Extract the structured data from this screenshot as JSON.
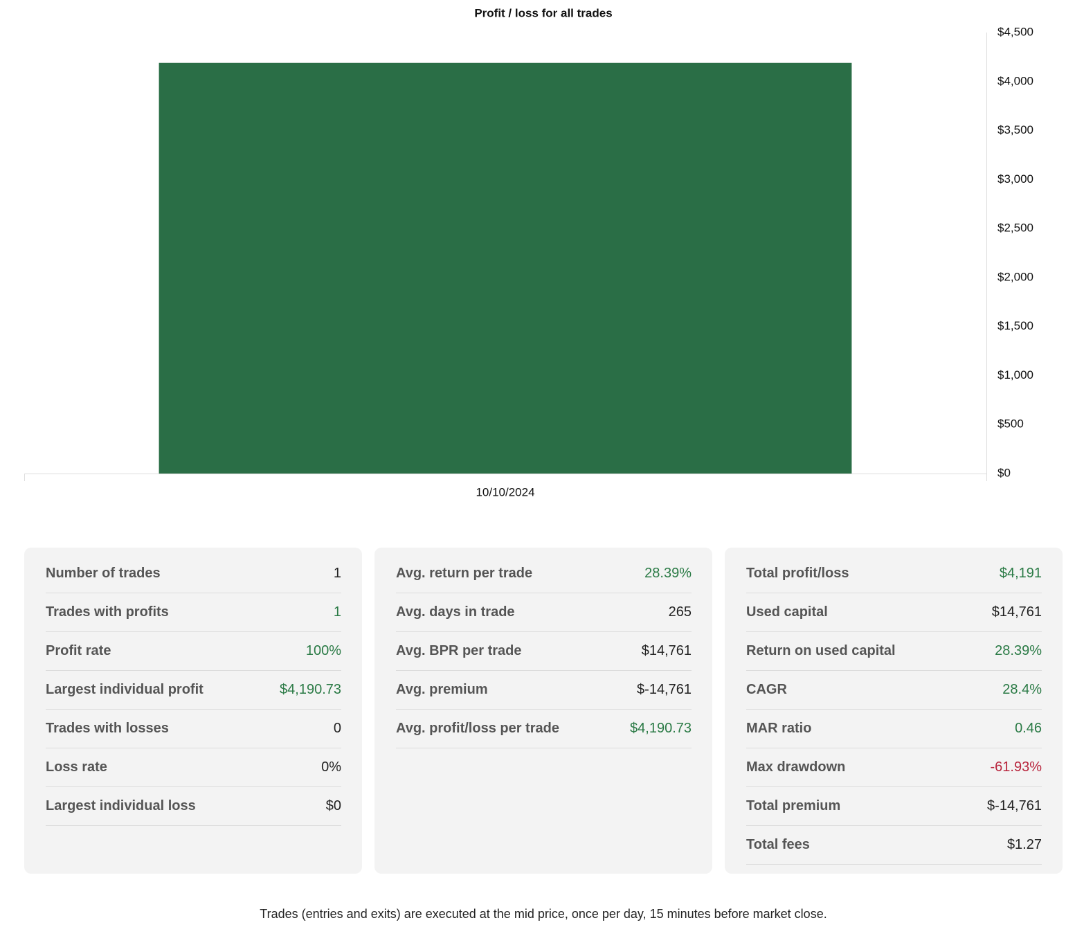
{
  "chart_data": {
    "type": "bar",
    "title": "Profit / loss for all trades",
    "categories": [
      "10/10/2024"
    ],
    "values": [
      4190.73
    ],
    "color": "#2a6e46",
    "ylim": [
      0,
      4500
    ],
    "yticks": [
      {
        "value": 0,
        "label": "$0"
      },
      {
        "value": 500,
        "label": "$500"
      },
      {
        "value": 1000,
        "label": "$1,000"
      },
      {
        "value": 1500,
        "label": "$1,500"
      },
      {
        "value": 2000,
        "label": "$2,000"
      },
      {
        "value": 2500,
        "label": "$2,500"
      },
      {
        "value": 3000,
        "label": "$3,000"
      },
      {
        "value": 3500,
        "label": "$3,500"
      },
      {
        "value": 4000,
        "label": "$4,000"
      },
      {
        "value": 4500,
        "label": "$4,500"
      }
    ],
    "grid": false
  },
  "panels": [
    {
      "rows": [
        {
          "label": "Number of trades",
          "value": "1",
          "color": "#222222"
        },
        {
          "label": "Trades with profits",
          "value": "1",
          "color": "#2a7a45"
        },
        {
          "label": "Profit rate",
          "value": "100%",
          "color": "#2a7a45"
        },
        {
          "label": "Largest individual profit",
          "value": "$4,190.73",
          "color": "#2a7a45"
        },
        {
          "label": "Trades with losses",
          "value": "0",
          "color": "#222222"
        },
        {
          "label": "Loss rate",
          "value": "0%",
          "color": "#222222"
        },
        {
          "label": "Largest individual loss",
          "value": "$0",
          "color": "#222222"
        }
      ]
    },
    {
      "rows": [
        {
          "label": "Avg. return per trade",
          "value": "28.39%",
          "color": "#2a7a45"
        },
        {
          "label": "Avg. days in trade",
          "value": "265",
          "color": "#222222"
        },
        {
          "label": "Avg. BPR per trade",
          "value": "$14,761",
          "color": "#222222"
        },
        {
          "label": "Avg. premium",
          "value": "$-14,761",
          "color": "#222222"
        },
        {
          "label": "Avg. profit/loss per trade",
          "value": "$4,190.73",
          "color": "#2a7a45"
        }
      ]
    },
    {
      "rows": [
        {
          "label": "Total profit/loss",
          "value": "$4,191",
          "color": "#2a7a45"
        },
        {
          "label": "Used capital",
          "value": "$14,761",
          "color": "#222222"
        },
        {
          "label": "Return on used capital",
          "value": "28.39%",
          "color": "#2a7a45"
        },
        {
          "label": "CAGR",
          "value": "28.4%",
          "color": "#2a7a45"
        },
        {
          "label": "MAR ratio",
          "value": "0.46",
          "color": "#2a7a45"
        },
        {
          "label": "Max drawdown",
          "value": "-61.93%",
          "color": "#b8243c"
        },
        {
          "label": "Total premium",
          "value": "$-14,761",
          "color": "#222222"
        },
        {
          "label": "Total fees",
          "value": "$1.27",
          "color": "#222222"
        }
      ]
    }
  ],
  "note": "Trades (entries and exits) are executed at the mid price, once per day, 15 minutes before market close."
}
